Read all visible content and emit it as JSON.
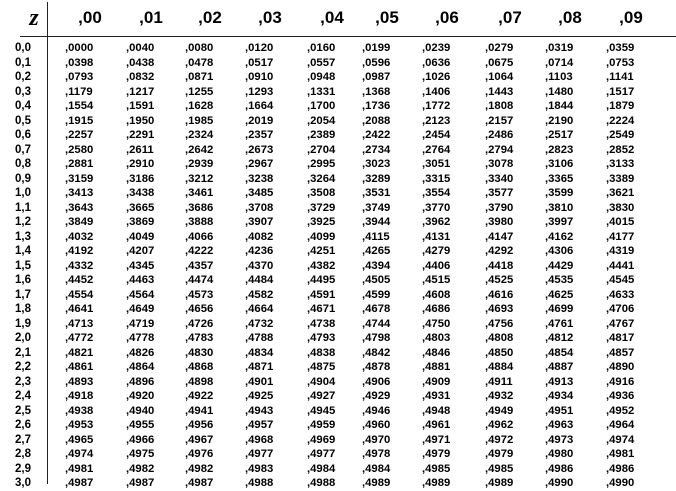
{
  "table": {
    "z_label": "z",
    "columns": [
      ",00",
      ",01",
      ",02",
      ",03",
      ",04",
      ",05",
      ",06",
      ",07",
      ",08",
      ",09"
    ],
    "rows": [
      {
        "z": "0,0",
        "values": [
          ",0000",
          ",0040",
          ",0080",
          ",0120",
          ",0160",
          ",0199",
          ",0239",
          ",0279",
          ",0319",
          ",0359"
        ]
      },
      {
        "z": "0,1",
        "values": [
          ",0398",
          ",0438",
          ",0478",
          ",0517",
          ",0557",
          ",0596",
          ",0636",
          ",0675",
          ",0714",
          ",0753"
        ]
      },
      {
        "z": "0,2",
        "values": [
          ",0793",
          ",0832",
          ",0871",
          ",0910",
          ",0948",
          ",0987",
          ",1026",
          ",1064",
          ",1103",
          ",1141"
        ]
      },
      {
        "z": "0,3",
        "values": [
          ",1179",
          ",1217",
          ",1255",
          ",1293",
          ",1331",
          ",1368",
          ",1406",
          ",1443",
          ",1480",
          ",1517"
        ]
      },
      {
        "z": "0,4",
        "values": [
          ",1554",
          ",1591",
          ",1628",
          ",1664",
          ",1700",
          ",1736",
          ",1772",
          ",1808",
          ",1844",
          ",1879"
        ]
      },
      {
        "z": "0,5",
        "values": [
          ",1915",
          ",1950",
          ",1985",
          ",2019",
          ",2054",
          ",2088",
          ",2123",
          ",2157",
          ",2190",
          ",2224"
        ]
      },
      {
        "z": "0,6",
        "values": [
          ",2257",
          ",2291",
          ",2324",
          ",2357",
          ",2389",
          ",2422",
          ",2454",
          ",2486",
          ",2517",
          ",2549"
        ]
      },
      {
        "z": "0,7",
        "values": [
          ",2580",
          ",2611",
          ",2642",
          ",2673",
          ",2704",
          ",2734",
          ",2764",
          ",2794",
          ",2823",
          ",2852"
        ]
      },
      {
        "z": "0,8",
        "values": [
          ",2881",
          ",2910",
          ",2939",
          ",2967",
          ",2995",
          ",3023",
          ",3051",
          ",3078",
          ",3106",
          ",3133"
        ]
      },
      {
        "z": "0,9",
        "values": [
          ",3159",
          ",3186",
          ",3212",
          ",3238",
          ",3264",
          ",3289",
          ",3315",
          ",3340",
          ",3365",
          ",3389"
        ]
      },
      {
        "z": "1,0",
        "values": [
          ",3413",
          ",3438",
          ",3461",
          ",3485",
          ",3508",
          ",3531",
          ",3554",
          ",3577",
          ",3599",
          ",3621"
        ]
      },
      {
        "z": "1,1",
        "values": [
          ",3643",
          ",3665",
          ",3686",
          ",3708",
          ",3729",
          ",3749",
          ",3770",
          ",3790",
          ",3810",
          ",3830"
        ]
      },
      {
        "z": "1,2",
        "values": [
          ",3849",
          ",3869",
          ",3888",
          ",3907",
          ",3925",
          ",3944",
          ",3962",
          ",3980",
          ",3997",
          ",4015"
        ]
      },
      {
        "z": "1,3",
        "values": [
          ",4032",
          ",4049",
          ",4066",
          ",4082",
          ",4099",
          ",4115",
          ",4131",
          ",4147",
          ",4162",
          ",4177"
        ]
      },
      {
        "z": "1,4",
        "values": [
          ",4192",
          ",4207",
          ",4222",
          ",4236",
          ",4251",
          ",4265",
          ",4279",
          ",4292",
          ",4306",
          ",4319"
        ]
      },
      {
        "z": "1,5",
        "values": [
          ",4332",
          ",4345",
          ",4357",
          ",4370",
          ",4382",
          ",4394",
          ",4406",
          ",4418",
          ",4429",
          ",4441"
        ]
      },
      {
        "z": "1,6",
        "values": [
          ",4452",
          ",4463",
          ",4474",
          ",4484",
          ",4495",
          ",4505",
          ",4515",
          ",4525",
          ",4535",
          ",4545"
        ]
      },
      {
        "z": "1,7",
        "values": [
          ",4554",
          ",4564",
          ",4573",
          ",4582",
          ",4591",
          ",4599",
          ",4608",
          ",4616",
          ",4625",
          ",4633"
        ]
      },
      {
        "z": "1,8",
        "values": [
          ",4641",
          ",4649",
          ",4656",
          ",4664",
          ",4671",
          ",4678",
          ",4686",
          ",4693",
          ",4699",
          ",4706"
        ]
      },
      {
        "z": "1,9",
        "values": [
          ",4713",
          ",4719",
          ",4726",
          ",4732",
          ",4738",
          ",4744",
          ",4750",
          ",4756",
          ",4761",
          ",4767"
        ]
      },
      {
        "z": "2,0",
        "values": [
          ",4772",
          ",4778",
          ",4783",
          ",4788",
          ",4793",
          ",4798",
          ",4803",
          ",4808",
          ",4812",
          ",4817"
        ]
      },
      {
        "z": "2,1",
        "values": [
          ",4821",
          ",4826",
          ",4830",
          ",4834",
          ",4838",
          ",4842",
          ",4846",
          ",4850",
          ",4854",
          ",4857"
        ]
      },
      {
        "z": "2,2",
        "values": [
          ",4861",
          ",4864",
          ",4868",
          ",4871",
          ",4875",
          ",4878",
          ",4881",
          ",4884",
          ",4887",
          ",4890"
        ]
      },
      {
        "z": "2,3",
        "values": [
          ",4893",
          ",4896",
          ",4898",
          ",4901",
          ",4904",
          ",4906",
          ",4909",
          ",4911",
          ",4913",
          ",4916"
        ]
      },
      {
        "z": "2,4",
        "values": [
          ",4918",
          ",4920",
          ",4922",
          ",4925",
          ",4927",
          ",4929",
          ",4931",
          ",4932",
          ",4934",
          ",4936"
        ]
      },
      {
        "z": "2,5",
        "values": [
          ",4938",
          ",4940",
          ",4941",
          ",4943",
          ",4945",
          ",4946",
          ",4948",
          ",4949",
          ",4951",
          ",4952"
        ]
      },
      {
        "z": "2,6",
        "values": [
          ",4953",
          ",4955",
          ",4956",
          ",4957",
          ",4959",
          ",4960",
          ",4961",
          ",4962",
          ",4963",
          ",4964"
        ]
      },
      {
        "z": "2,7",
        "values": [
          ",4965",
          ",4966",
          ",4967",
          ",4968",
          ",4969",
          ",4970",
          ",4971",
          ",4972",
          ",4973",
          ",4974"
        ]
      },
      {
        "z": "2,8",
        "values": [
          ",4974",
          ",4975",
          ",4976",
          ",4977",
          ",4977",
          ",4978",
          ",4979",
          ",4979",
          ",4980",
          ",4981"
        ]
      },
      {
        "z": "2,9",
        "values": [
          ",4981",
          ",4982",
          ",4982",
          ",4983",
          ",4984",
          ",4984",
          ",4985",
          ",4985",
          ",4986",
          ",4986"
        ]
      },
      {
        "z": "3,0",
        "values": [
          ",4987",
          ",4987",
          ",4987",
          ",4988",
          ",4988",
          ",4989",
          ",4989",
          ",4989",
          ",4990",
          ",4990"
        ]
      }
    ]
  }
}
